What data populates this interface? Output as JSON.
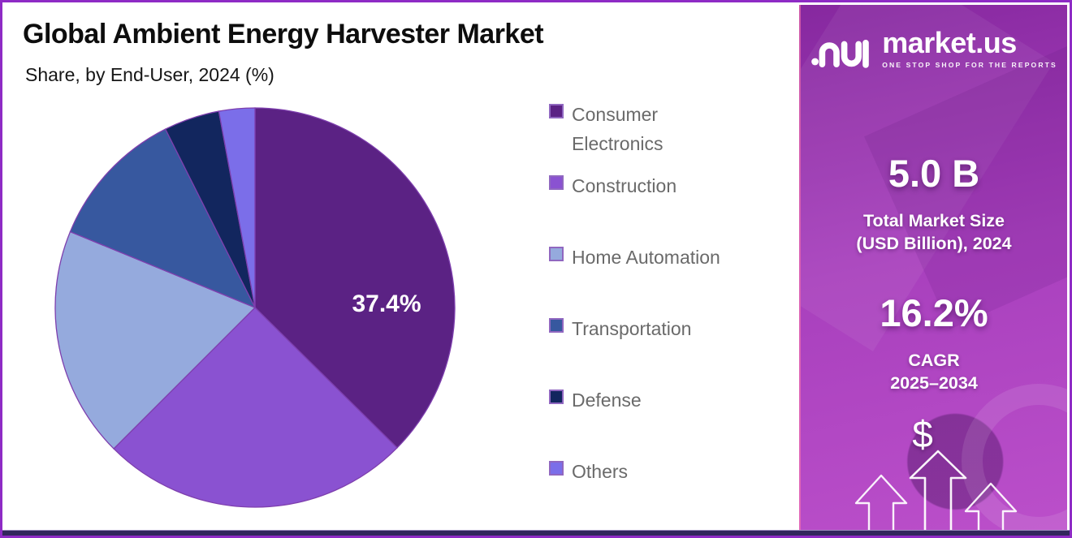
{
  "header": {
    "title": "Global Ambient Energy Harvester Market",
    "subtitle": "Share, by End-User, 2024 (%)"
  },
  "chart_data": {
    "type": "pie",
    "title": "Global Ambient Energy Harvester Market",
    "subtitle": "Share, by End-User, 2024 (%)",
    "unit": "%",
    "labels": [
      "Consumer Electronics",
      "Construction",
      "Home Automation",
      "Transportation",
      "Defense",
      "Others"
    ],
    "values": [
      37.4,
      25.1,
      18.7,
      11.4,
      4.5,
      2.9
    ],
    "colors": [
      "#5b2284",
      "#8a52d1",
      "#95aadd",
      "#37589f",
      "#12265e",
      "#7b6ee9"
    ],
    "start_angle_deg": 0,
    "direction": "clockwise",
    "visible_slice_label": "37.4%",
    "labeled_slice": "Consumer Electronics",
    "legend_position": "right",
    "slice_border_color": "#7e3fae"
  },
  "legend": {
    "items": [
      {
        "label": "Consumer Electronics",
        "color": "#5b2284"
      },
      {
        "label": "Construction",
        "color": "#8a52d1"
      },
      {
        "label": "Home Automation",
        "color": "#95aadd"
      },
      {
        "label": "Transportation",
        "color": "#37589f"
      },
      {
        "label": "Defense",
        "color": "#12265e"
      },
      {
        "label": "Others",
        "color": "#7b6ee9"
      }
    ]
  },
  "panel": {
    "brand_name": "market.us",
    "brand_tagline": "ONE STOP SHOP FOR THE REPORTS",
    "market_size": {
      "value": "5.0 B",
      "label_line1": "Total Market Size",
      "label_line2": "(USD Billion), 2024"
    },
    "cagr": {
      "value": "16.2%",
      "label": "CAGR",
      "period": "2025–2034"
    },
    "dollar_symbol": "$"
  },
  "theme": {
    "frame_border": "#8e2bc5",
    "panel_top": "#86289f",
    "panel_mid": "#a840bd",
    "panel_bottom": "#bb4fca",
    "bottom_strip": "#32265c",
    "title_color": "#0d0d0d",
    "legend_text": "#6a6a6a"
  }
}
